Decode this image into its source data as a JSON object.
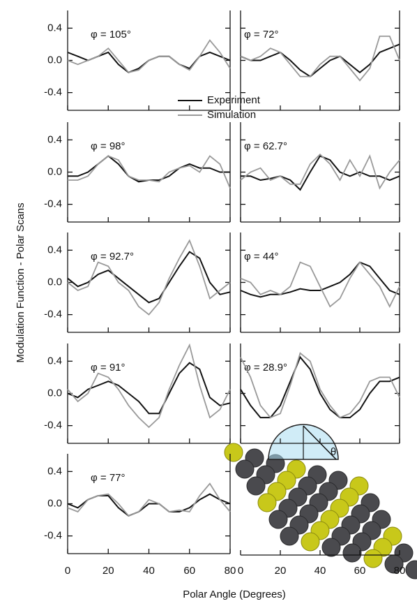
{
  "chart_data": [
    {
      "type": "line",
      "annotation": "φ = 105°",
      "ylabel": "Modulation Function - Polar Scans",
      "legend": "lower right",
      "x": [
        0,
        5,
        10,
        15,
        20,
        25,
        30,
        35,
        40,
        45,
        50,
        55,
        60,
        65,
        70,
        75,
        80
      ],
      "xlim": [
        0,
        80
      ],
      "xticks": [
        0,
        20,
        40,
        60,
        80
      ],
      "show_xtick_labels": false,
      "ylim": [
        -0.62,
        0.62
      ],
      "yticks": [
        -0.4,
        {
          "value": 0,
          "label": "0.0"
        },
        0.4
      ],
      "show_ytick_labels": true,
      "series": [
        {
          "name": "Experiment",
          "color": "#111111",
          "values": [
            0.1,
            0.05,
            0.0,
            0.05,
            0.1,
            -0.05,
            -0.15,
            -0.1,
            0.0,
            0.05,
            0.05,
            -0.05,
            -0.1,
            0.05,
            0.1,
            0.05,
            0.0
          ]
        },
        {
          "name": "Simulation",
          "color": "#999999",
          "values": [
            0.0,
            -0.05,
            0.0,
            0.05,
            0.15,
            0.0,
            -0.15,
            -0.12,
            0.0,
            0.05,
            0.05,
            -0.05,
            -0.12,
            0.05,
            0.25,
            0.1,
            -0.1
          ]
        }
      ]
    },
    {
      "type": "line",
      "annotation": "φ = 98°",
      "x": [
        0,
        5,
        10,
        15,
        20,
        25,
        30,
        35,
        40,
        45,
        50,
        55,
        60,
        65,
        70,
        75,
        80
      ],
      "xlim": [
        0,
        80
      ],
      "xticks": [
        0,
        20,
        40,
        60,
        80
      ],
      "show_xtick_labels": false,
      "ylim": [
        -0.62,
        0.62
      ],
      "yticks": [
        -0.4,
        {
          "value": 0,
          "label": "0.0"
        },
        0.4
      ],
      "show_ytick_labels": true,
      "series": [
        {
          "color": "#111111",
          "values": [
            -0.05,
            -0.05,
            0.0,
            0.1,
            0.2,
            0.1,
            -0.05,
            -0.12,
            -0.1,
            -0.1,
            -0.05,
            0.05,
            0.1,
            0.05,
            0.05,
            0.0,
            0.0
          ]
        },
        {
          "color": "#999999",
          "values": [
            -0.1,
            -0.1,
            -0.05,
            0.1,
            0.2,
            0.15,
            -0.05,
            -0.1,
            -0.1,
            -0.12,
            0.0,
            0.05,
            0.08,
            0.0,
            0.2,
            0.1,
            -0.2
          ]
        }
      ]
    },
    {
      "type": "line",
      "annotation": "φ = 92.7°",
      "x": [
        0,
        5,
        10,
        15,
        20,
        25,
        30,
        35,
        40,
        45,
        50,
        55,
        60,
        65,
        70,
        75,
        80
      ],
      "xlim": [
        0,
        80
      ],
      "xticks": [
        0,
        20,
        40,
        60,
        80
      ],
      "show_xtick_labels": false,
      "ylim": [
        -0.62,
        0.62
      ],
      "yticks": [
        -0.4,
        {
          "value": 0,
          "label": "0.0"
        },
        0.4
      ],
      "show_ytick_labels": true,
      "series": [
        {
          "color": "#111111",
          "values": [
            0.05,
            -0.05,
            0.0,
            0.1,
            0.15,
            0.05,
            -0.05,
            -0.15,
            -0.25,
            -0.2,
            0.0,
            0.2,
            0.38,
            0.3,
            0.0,
            -0.15,
            -0.12
          ]
        },
        {
          "color": "#999999",
          "values": [
            0.0,
            -0.1,
            -0.05,
            0.25,
            0.2,
            0.0,
            -0.1,
            -0.3,
            -0.4,
            -0.25,
            0.05,
            0.3,
            0.52,
            0.2,
            -0.2,
            -0.1,
            0.0
          ]
        }
      ]
    },
    {
      "type": "line",
      "annotation": "φ = 91°",
      "x": [
        0,
        5,
        10,
        15,
        20,
        25,
        30,
        35,
        40,
        45,
        50,
        55,
        60,
        65,
        70,
        75,
        80
      ],
      "xlim": [
        0,
        80
      ],
      "xticks": [
        0,
        20,
        40,
        60,
        80
      ],
      "show_xtick_labels": false,
      "ylim": [
        -0.62,
        0.62
      ],
      "yticks": [
        -0.4,
        {
          "value": 0,
          "label": "0.0"
        },
        0.4
      ],
      "show_ytick_labels": true,
      "series": [
        {
          "color": "#111111",
          "values": [
            0.0,
            -0.05,
            0.05,
            0.1,
            0.15,
            0.1,
            0.0,
            -0.1,
            -0.25,
            -0.25,
            0.0,
            0.25,
            0.38,
            0.3,
            -0.05,
            -0.15,
            -0.12
          ]
        },
        {
          "color": "#999999",
          "values": [
            0.05,
            -0.1,
            0.0,
            0.25,
            0.2,
            0.05,
            -0.15,
            -0.3,
            -0.42,
            -0.3,
            0.05,
            0.35,
            0.6,
            0.1,
            -0.3,
            -0.2,
            0.05
          ]
        }
      ]
    },
    {
      "type": "line",
      "annotation": "φ = 77°",
      "xlabel": "Polar Angle (Degrees)",
      "x": [
        0,
        5,
        10,
        15,
        20,
        25,
        30,
        35,
        40,
        45,
        50,
        55,
        60,
        65,
        70,
        75,
        80
      ],
      "xlim": [
        0,
        80
      ],
      "xticks": [
        0,
        20,
        40,
        60,
        80
      ],
      "show_xtick_labels": true,
      "ylim": [
        -0.62,
        0.62
      ],
      "yticks": [
        -0.4,
        {
          "value": 0,
          "label": "0.0"
        },
        0.4
      ],
      "show_ytick_labels": true,
      "series": [
        {
          "color": "#111111",
          "values": [
            0.0,
            -0.05,
            0.05,
            0.1,
            0.1,
            -0.05,
            -0.15,
            -0.1,
            0.0,
            0.0,
            -0.1,
            -0.1,
            -0.05,
            0.05,
            0.12,
            0.05,
            0.0
          ]
        },
        {
          "color": "#999999",
          "values": [
            -0.05,
            -0.1,
            0.05,
            0.1,
            0.12,
            0.0,
            -0.15,
            -0.1,
            0.05,
            0.0,
            -0.1,
            -0.08,
            -0.1,
            0.1,
            0.25,
            0.05,
            -0.1
          ]
        }
      ]
    },
    {
      "type": "line",
      "annotation": "φ = 72°",
      "x": [
        0,
        5,
        10,
        15,
        20,
        25,
        30,
        35,
        40,
        45,
        50,
        55,
        60,
        65,
        70,
        75,
        80
      ],
      "xlim": [
        0,
        80
      ],
      "xticks": [
        0,
        20,
        40,
        60,
        80
      ],
      "show_xtick_labels": false,
      "ylim": [
        -0.62,
        0.62
      ],
      "yticks": [
        -0.4,
        0,
        0.4
      ],
      "show_ytick_labels": false,
      "series": [
        {
          "color": "#111111",
          "values": [
            0.05,
            0.0,
            0.0,
            0.05,
            0.1,
            0.0,
            -0.12,
            -0.2,
            -0.1,
            0.0,
            0.05,
            -0.05,
            -0.15,
            -0.05,
            0.1,
            0.15,
            0.2
          ]
        },
        {
          "color": "#999999",
          "values": [
            0.05,
            0.0,
            0.05,
            0.15,
            0.1,
            -0.05,
            -0.2,
            -0.2,
            -0.05,
            0.05,
            0.05,
            -0.1,
            -0.25,
            -0.1,
            0.3,
            0.3,
            0.0
          ]
        }
      ]
    },
    {
      "type": "line",
      "annotation": "φ = 62.7°",
      "x": [
        0,
        5,
        10,
        15,
        20,
        25,
        30,
        35,
        40,
        45,
        50,
        55,
        60,
        65,
        70,
        75,
        80
      ],
      "xlim": [
        0,
        80
      ],
      "xticks": [
        0,
        20,
        40,
        60,
        80
      ],
      "show_xtick_labels": false,
      "ylim": [
        -0.62,
        0.62
      ],
      "yticks": [
        -0.4,
        0,
        0.4
      ],
      "show_ytick_labels": false,
      "series": [
        {
          "color": "#111111",
          "values": [
            -0.05,
            -0.05,
            -0.1,
            -0.08,
            -0.05,
            -0.1,
            -0.22,
            0.0,
            0.2,
            0.15,
            0.0,
            -0.05,
            0.0,
            -0.05,
            -0.05,
            -0.1,
            -0.05
          ]
        },
        {
          "color": "#999999",
          "values": [
            -0.1,
            0.0,
            0.05,
            -0.1,
            -0.05,
            -0.15,
            -0.15,
            0.1,
            0.22,
            0.1,
            -0.1,
            0.15,
            -0.05,
            0.2,
            -0.2,
            0.0,
            0.15
          ]
        }
      ]
    },
    {
      "type": "line",
      "annotation": "φ = 44°",
      "x": [
        0,
        5,
        10,
        15,
        20,
        25,
        30,
        35,
        40,
        45,
        50,
        55,
        60,
        65,
        70,
        75,
        80
      ],
      "xlim": [
        0,
        80
      ],
      "xticks": [
        0,
        20,
        40,
        60,
        80
      ],
      "show_xtick_labels": false,
      "ylim": [
        -0.62,
        0.62
      ],
      "yticks": [
        -0.4,
        0,
        0.4
      ],
      "show_ytick_labels": false,
      "series": [
        {
          "color": "#111111",
          "values": [
            -0.1,
            -0.15,
            -0.18,
            -0.15,
            -0.15,
            -0.12,
            -0.08,
            -0.1,
            -0.1,
            -0.05,
            0.0,
            0.1,
            0.25,
            0.2,
            0.05,
            -0.1,
            -0.15
          ]
        },
        {
          "color": "#999999",
          "values": [
            0.05,
            0.0,
            -0.15,
            -0.1,
            -0.15,
            -0.05,
            0.25,
            0.2,
            -0.05,
            -0.3,
            -0.2,
            0.05,
            0.25,
            0.1,
            -0.05,
            -0.3,
            -0.05
          ]
        }
      ]
    },
    {
      "type": "line",
      "annotation": "φ = 28.9°",
      "x": [
        0,
        5,
        10,
        15,
        20,
        25,
        30,
        35,
        40,
        45,
        50,
        55,
        60,
        65,
        70,
        75,
        80
      ],
      "xlim": [
        0,
        80
      ],
      "xticks": [
        0,
        20,
        40,
        60,
        80
      ],
      "show_xtick_labels": true,
      "ylim": [
        -0.62,
        0.62
      ],
      "yticks": [
        -0.4,
        0,
        0.4
      ],
      "show_ytick_labels": false,
      "series": [
        {
          "color": "#111111",
          "values": [
            0.05,
            -0.15,
            -0.3,
            -0.3,
            -0.15,
            0.15,
            0.45,
            0.3,
            0.0,
            -0.2,
            -0.3,
            -0.3,
            -0.2,
            0.0,
            0.15,
            0.15,
            0.2
          ]
        },
        {
          "color": "#999999",
          "values": [
            0.45,
            0.2,
            -0.15,
            -0.3,
            -0.25,
            0.1,
            0.5,
            0.4,
            0.05,
            -0.15,
            -0.3,
            -0.25,
            -0.1,
            0.15,
            0.2,
            0.2,
            -0.05
          ]
        }
      ]
    }
  ],
  "inset": {
    "label": "θ"
  }
}
